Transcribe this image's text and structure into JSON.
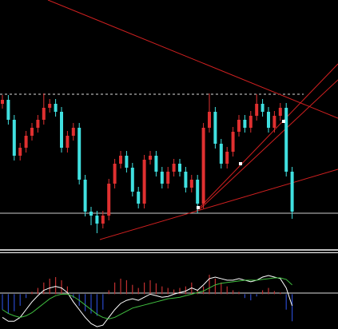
{
  "chart_data": [
    {
      "type": "candlestick",
      "up_color": "#e03030",
      "down_color": "#40e0e0",
      "ylim": [
        0,
        312
      ],
      "open": [
        182,
        187,
        162,
        117,
        127,
        142,
        152,
        162,
        177,
        182,
        172,
        127,
        142,
        152,
        87,
        47,
        42,
        32,
        42,
        82,
        107,
        117,
        102,
        72,
        57,
        112,
        117,
        97,
        82,
        97,
        107,
        97,
        77,
        87,
        57,
        152,
        172,
        132,
        107,
        122,
        147,
        162,
        152,
        167,
        182,
        172,
        152,
        167,
        177,
        97
      ],
      "high": [
        193,
        193,
        168,
        133,
        148,
        158,
        168,
        195,
        188,
        188,
        178,
        148,
        158,
        158,
        93,
        53,
        48,
        48,
        88,
        113,
        123,
        123,
        108,
        78,
        118,
        123,
        123,
        103,
        103,
        113,
        113,
        103,
        93,
        93,
        158,
        195,
        178,
        138,
        128,
        153,
        168,
        168,
        173,
        194,
        188,
        178,
        173,
        183,
        183,
        103
      ],
      "low": [
        176,
        156,
        111,
        111,
        121,
        136,
        146,
        156,
        171,
        166,
        121,
        121,
        136,
        81,
        41,
        30,
        20,
        26,
        36,
        76,
        101,
        96,
        66,
        51,
        51,
        106,
        91,
        76,
        76,
        91,
        91,
        71,
        71,
        45,
        51,
        146,
        126,
        101,
        101,
        116,
        141,
        146,
        146,
        161,
        166,
        146,
        146,
        161,
        91,
        38
      ],
      "close": [
        187,
        162,
        117,
        127,
        142,
        152,
        162,
        177,
        182,
        172,
        127,
        142,
        152,
        87,
        47,
        42,
        32,
        42,
        82,
        107,
        117,
        102,
        72,
        57,
        112,
        117,
        97,
        82,
        97,
        107,
        97,
        77,
        87,
        57,
        152,
        172,
        132,
        107,
        122,
        147,
        162,
        152,
        167,
        182,
        172,
        152,
        167,
        177,
        97,
        47
      ]
    },
    {
      "type": "macd",
      "ylim": [
        -45,
        55
      ],
      "pos_color": "#c03030",
      "neg_color": "#2848c8",
      "histogram": [
        -20,
        -25,
        -22,
        -15,
        -5,
        3,
        8,
        15,
        20,
        22,
        18,
        10,
        -5,
        -15,
        -22,
        -25,
        -28,
        -20,
        5,
        15,
        20,
        18,
        12,
        8,
        15,
        18,
        14,
        10,
        8,
        6,
        8,
        10,
        15,
        5,
        10,
        25,
        20,
        15,
        10,
        5,
        3,
        -5,
        -8,
        -3,
        5,
        8,
        4,
        2,
        -20,
        -35
      ],
      "series": [
        {
          "color": "#ffffff",
          "values": [
            -30,
            -35,
            -35,
            -30,
            -20,
            -10,
            -2,
            5,
            8,
            10,
            8,
            2,
            -10,
            -20,
            -30,
            -38,
            -42,
            -40,
            -30,
            -20,
            -12,
            -8,
            -6,
            -8,
            -4,
            0,
            -2,
            -4,
            -3,
            0,
            2,
            4,
            8,
            5,
            12,
            20,
            22,
            20,
            18,
            18,
            20,
            18,
            16,
            18,
            22,
            24,
            22,
            20,
            8,
            -15
          ]
        },
        {
          "color": "#40c040",
          "values": [
            -20,
            -25,
            -28,
            -30,
            -28,
            -24,
            -18,
            -12,
            -6,
            -2,
            0,
            0,
            -3,
            -8,
            -14,
            -20,
            -26,
            -30,
            -32,
            -30,
            -26,
            -22,
            -18,
            -16,
            -14,
            -12,
            -10,
            -8,
            -6,
            -5,
            -4,
            -2,
            0,
            2,
            4,
            8,
            12,
            14,
            15,
            16,
            17,
            18,
            18,
            18,
            19,
            20,
            21,
            21,
            19,
            12
          ]
        }
      ]
    }
  ]
}
